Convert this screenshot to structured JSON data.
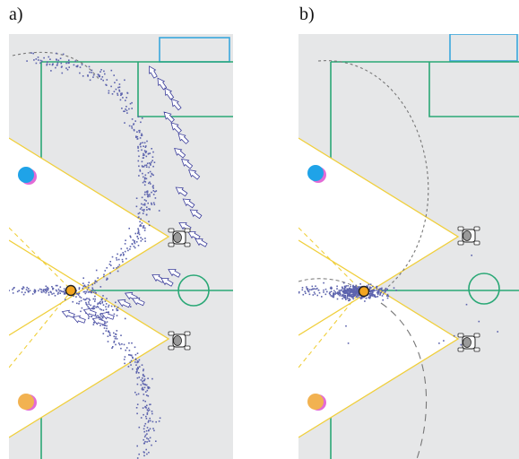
{
  "panels": [
    {
      "id": "a",
      "label": "a)"
    },
    {
      "id": "b",
      "label": "b)"
    }
  ],
  "colors": {
    "field": "#e6e7e8",
    "field_line": "#2aa876",
    "goal_box": "#3aa7dd",
    "fov_edge": "#f0cf3c",
    "scatter": "#5c63ad",
    "ball_fill": "#f3a51e",
    "robot_blue": "#1fa3e8",
    "robot_orange": "#f2b251",
    "marker_shadow": "#e26bd6",
    "arrow_stroke": "#3d3f9c",
    "arc": "#777777"
  },
  "icons": [
    "robot-top-view-icon",
    "ball-icon",
    "arrow-chevron-icon",
    "team-marker-icon"
  ]
}
